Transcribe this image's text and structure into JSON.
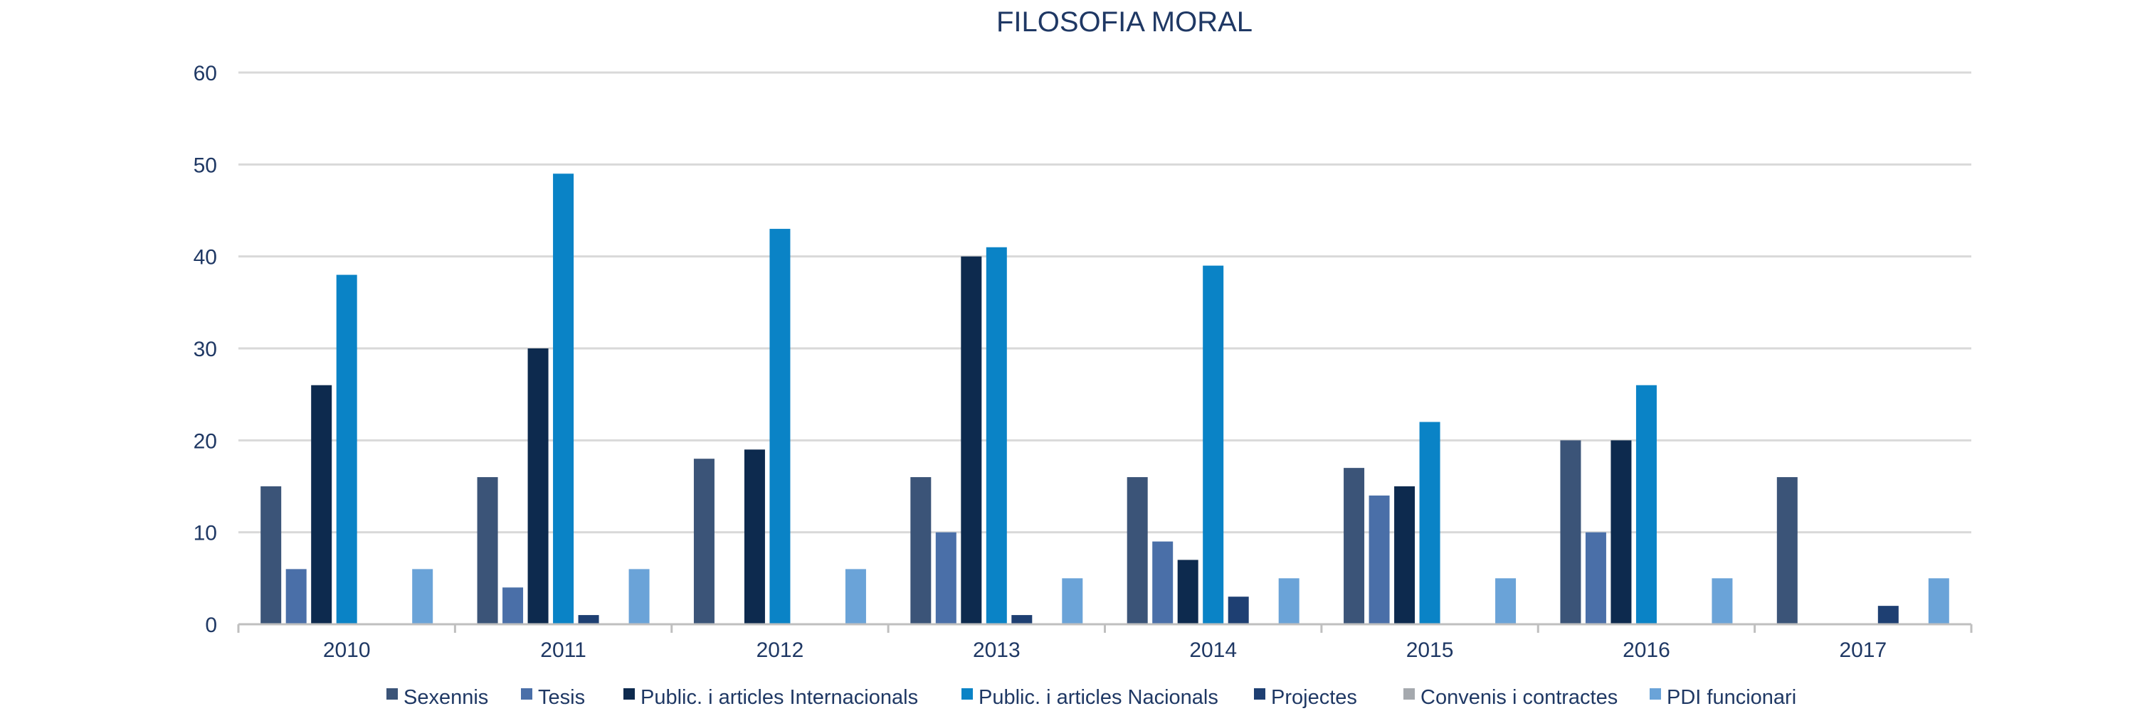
{
  "chart_data": {
    "type": "bar",
    "title": "FILOSOFIA MORAL",
    "xlabel": "",
    "ylabel": "",
    "ylim": [
      0,
      60
    ],
    "yticks": [
      0,
      10,
      20,
      30,
      40,
      50,
      60
    ],
    "grid": true,
    "legend_position": "bottom",
    "categories": [
      "2010",
      "2011",
      "2012",
      "2013",
      "2014",
      "2015",
      "2016",
      "2017"
    ],
    "series": [
      {
        "name": "Sexennis",
        "color": "#3b5478",
        "values": [
          15,
          16,
          18,
          16,
          16,
          17,
          20,
          16
        ]
      },
      {
        "name": "Tesis",
        "color": "#4a6fa8",
        "values": [
          6,
          4,
          0,
          10,
          9,
          14,
          10,
          0
        ]
      },
      {
        "name": "Public. i articles Internacionals",
        "color": "#0d2a4e",
        "values": [
          26,
          30,
          19,
          40,
          7,
          15,
          20,
          0
        ]
      },
      {
        "name": "Public. i articles Nacionals",
        "color": "#0a83c6",
        "values": [
          38,
          49,
          43,
          41,
          39,
          22,
          26,
          0
        ]
      },
      {
        "name": "Projectes",
        "color": "#1e3f72",
        "values": [
          0,
          1,
          0,
          1,
          3,
          0,
          0,
          2
        ]
      },
      {
        "name": "Convenis i contractes",
        "color": "#a5a9ae",
        "values": [
          0,
          0,
          0,
          0,
          0,
          0,
          0,
          0
        ]
      },
      {
        "name": "PDI funcionari",
        "color": "#6aa3d8",
        "values": [
          6,
          6,
          6,
          5,
          5,
          5,
          5,
          5
        ]
      }
    ]
  }
}
